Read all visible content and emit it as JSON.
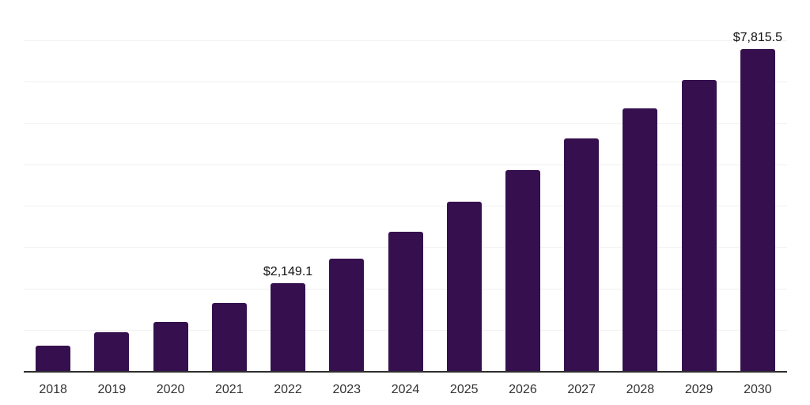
{
  "chart_data": {
    "type": "bar",
    "title": "",
    "xlabel": "",
    "ylabel": "",
    "categories": [
      "2018",
      "2019",
      "2020",
      "2021",
      "2022",
      "2023",
      "2024",
      "2025",
      "2026",
      "2027",
      "2028",
      "2029",
      "2030"
    ],
    "values": [
      635,
      965,
      1215,
      1665,
      2149.1,
      2730,
      3385,
      4110,
      4885,
      5650,
      6380,
      7065,
      7815.5
    ],
    "value_labels": [
      "",
      "",
      "",
      "",
      "$2,149.1",
      "",
      "",
      "",
      "",
      "",
      "",
      "",
      "$7,815.5"
    ],
    "ylim": [
      0,
      9000
    ],
    "gridline_step": 1000,
    "grid": "horizontal",
    "legend_position": "none",
    "y_axis_tick_labels_visible": false,
    "colors": {
      "bar": "#36104E",
      "gridline": "#F0F0F0",
      "axis_line": "#2E2E2E",
      "tick_label": "#333333",
      "value_label": "#111111",
      "background": "#FFFFFF"
    }
  }
}
